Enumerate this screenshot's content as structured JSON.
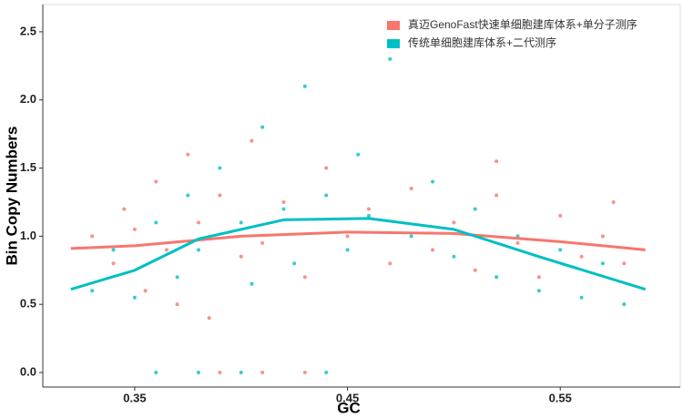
{
  "chart_data": {
    "type": "scatter",
    "x_label": "GC",
    "y_label": "Bin Copy Numbers",
    "xlim": [
      0.3068,
      0.6064
    ],
    "ylim": [
      -0.107,
      2.7
    ],
    "xticks": [
      0.35,
      0.45,
      0.55
    ],
    "yticks": [
      {
        "value": 0,
        "label": "0.0"
      },
      0.5,
      {
        "value": 1,
        "label": "1.0"
      },
      1.5,
      {
        "value": 2,
        "label": "2.0"
      },
      2.5
    ],
    "legend": "top-right",
    "series": [
      {
        "name": "真迈GenoFast快速单细胞建库体系+单分子测序",
        "color": "#F8766D",
        "x": [
          0.33,
          0.34,
          0.345,
          0.35,
          0.355,
          0.36,
          0.365,
          0.37,
          0.375,
          0.38,
          0.385,
          0.39,
          0.4,
          0.405,
          0.41,
          0.42,
          0.43,
          0.44,
          0.45,
          0.46,
          0.47,
          0.48,
          0.49,
          0.5,
          0.51,
          0.52,
          0.53,
          0.54,
          0.55,
          0.56,
          0.57,
          0.58,
          0.575,
          0.52,
          0.39,
          0.41,
          0.43
        ],
        "values": [
          1.0,
          0.8,
          1.2,
          1.05,
          0.6,
          1.4,
          0.9,
          0.5,
          1.6,
          1.1,
          0.4,
          1.3,
          0.85,
          1.7,
          0.95,
          1.25,
          0.7,
          1.5,
          1.0,
          1.2,
          0.8,
          1.35,
          0.9,
          1.1,
          0.75,
          1.3,
          0.95,
          0.7,
          1.15,
          0.85,
          1.0,
          0.8,
          1.25,
          1.55,
          0.0,
          0.0,
          0.0
        ],
        "fit": {
          "x": [
            0.32,
            0.35,
            0.4,
            0.45,
            0.5,
            0.55,
            0.59
          ],
          "values": [
            0.91,
            0.93,
            1.0,
            1.03,
            1.02,
            0.96,
            0.9
          ]
        }
      },
      {
        "name": "传统单细胞建库体系+二代测序",
        "color": "#00BFC4",
        "x": [
          0.33,
          0.34,
          0.35,
          0.36,
          0.37,
          0.375,
          0.38,
          0.39,
          0.4,
          0.405,
          0.41,
          0.42,
          0.425,
          0.43,
          0.44,
          0.45,
          0.455,
          0.46,
          0.47,
          0.48,
          0.49,
          0.5,
          0.51,
          0.52,
          0.53,
          0.54,
          0.55,
          0.56,
          0.57,
          0.58,
          0.36,
          0.38,
          0.4,
          0.44
        ],
        "values": [
          0.6,
          0.9,
          0.55,
          1.1,
          0.7,
          1.3,
          0.9,
          1.5,
          1.1,
          0.65,
          1.8,
          1.2,
          0.8,
          2.1,
          1.3,
          0.9,
          1.6,
          1.15,
          2.3,
          1.0,
          1.4,
          0.85,
          1.2,
          0.7,
          1.0,
          0.6,
          0.9,
          0.55,
          0.8,
          0.5,
          0.0,
          0.0,
          0.0,
          0.0
        ],
        "fit": {
          "x": [
            0.32,
            0.35,
            0.38,
            0.42,
            0.46,
            0.5,
            0.54,
            0.59
          ],
          "values": [
            0.61,
            0.75,
            0.98,
            1.12,
            1.13,
            1.05,
            0.85,
            0.61
          ]
        }
      }
    ]
  }
}
